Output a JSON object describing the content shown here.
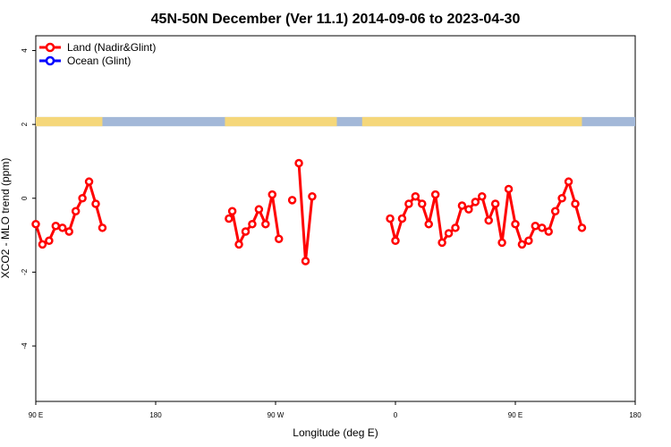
{
  "chart_data": {
    "type": "line",
    "title": "45N-50N December (Ver 11.1)   2014-09-06 to 2023-04-30",
    "xlabel": "Longitude (deg E)",
    "ylabel": "XCO2 - MLO trend (ppm)",
    "xlim": [
      90,
      540
    ],
    "ylim": [
      -5.5,
      4.4
    ],
    "x_ticks": [
      {
        "value": 90,
        "label": "90 E"
      },
      {
        "value": 180,
        "label": "180"
      },
      {
        "value": 270,
        "label": "90 W"
      },
      {
        "value": 360,
        "label": "0"
      },
      {
        "value": 450,
        "label": "90 E"
      },
      {
        "value": 540,
        "label": "180"
      }
    ],
    "y_ticks": [
      {
        "value": 4,
        "label": "4"
      },
      {
        "value": 2,
        "label": "2"
      },
      {
        "value": 0,
        "label": "0"
      },
      {
        "value": -2,
        "label": "-2"
      },
      {
        "value": -4,
        "label": "-4"
      }
    ],
    "legend": {
      "placement": "top-left",
      "entries": [
        {
          "name": "Land (Nadir&Glint)",
          "color": "#ff0000"
        },
        {
          "name": "Ocean (Glint)",
          "color": "#0000ff"
        }
      ]
    },
    "land_ocean_strip": {
      "y_range": [
        1.95,
        2.2
      ],
      "land_color": "#f5d77a",
      "ocean_color": "#a3b8d8",
      "land_longitude_ranges": [
        [
          90,
          140
        ],
        [
          232,
          316
        ],
        [
          335,
          500
        ]
      ]
    },
    "series": [
      {
        "name": "Land (Nadir&Glint)",
        "color": "#ff0000",
        "segments": [
          [
            [
              90,
              -0.7
            ],
            [
              95,
              -1.25
            ],
            [
              100,
              -1.15
            ],
            [
              105,
              -0.75
            ],
            [
              110,
              -0.8
            ],
            [
              115,
              -0.9
            ],
            [
              120,
              -0.35
            ],
            [
              125,
              0.0
            ],
            [
              130,
              0.45
            ],
            [
              135,
              -0.15
            ],
            [
              140,
              -0.8
            ]
          ],
          [
            [
              235,
              -0.55
            ],
            [
              237.5,
              -0.35
            ],
            [
              242.5,
              -1.25
            ],
            [
              247.5,
              -0.9
            ],
            [
              252.5,
              -0.7
            ],
            [
              257.5,
              -0.3
            ],
            [
              262.5,
              -0.7
            ],
            [
              267.5,
              0.1
            ],
            [
              272.5,
              -1.1
            ]
          ],
          [
            [
              282.5,
              -0.05
            ]
          ],
          [
            [
              287.5,
              0.95
            ],
            [
              292.5,
              -1.7
            ],
            [
              297.5,
              0.05
            ]
          ],
          [
            [
              356,
              -0.55
            ],
            [
              360,
              -1.15
            ],
            [
              365,
              -0.55
            ],
            [
              370,
              -0.15
            ],
            [
              375,
              0.05
            ],
            [
              380,
              -0.15
            ],
            [
              385,
              -0.7
            ],
            [
              390,
              0.1
            ],
            [
              395,
              -1.2
            ],
            [
              400,
              -0.95
            ],
            [
              405,
              -0.8
            ],
            [
              410,
              -0.2
            ],
            [
              415,
              -0.3
            ],
            [
              420,
              -0.1
            ],
            [
              425,
              0.05
            ],
            [
              430,
              -0.6
            ],
            [
              435,
              -0.15
            ],
            [
              440,
              -1.2
            ],
            [
              445,
              0.25
            ],
            [
              450,
              -0.7
            ],
            [
              455,
              -1.25
            ],
            [
              460,
              -1.15
            ],
            [
              465,
              -0.75
            ],
            [
              470,
              -0.8
            ],
            [
              475,
              -0.9
            ],
            [
              480,
              -0.35
            ],
            [
              485,
              0.0
            ],
            [
              490,
              0.45
            ],
            [
              495,
              -0.15
            ],
            [
              500,
              -0.8
            ]
          ]
        ]
      }
    ]
  }
}
